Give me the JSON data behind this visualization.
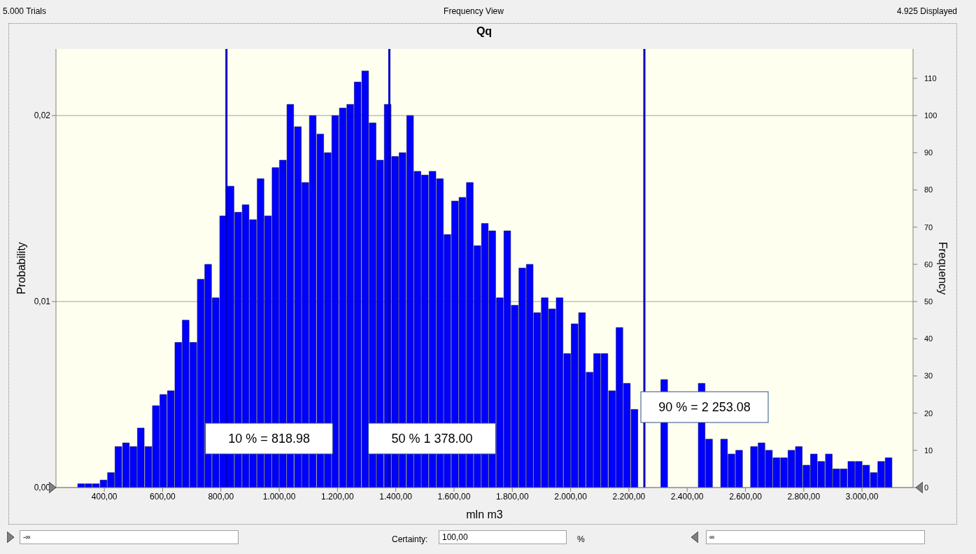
{
  "chart_data": {
    "type": "histogram",
    "title": "Qq",
    "xlabel": "mln m3",
    "ylabel": "Probability",
    "y2label": "Frequency",
    "annotations": [
      "5.000 Trials",
      "Frequency View",
      "4.925 Displayed",
      "-∞",
      "Certainty:",
      "100,00",
      "%",
      "∞"
    ],
    "bins": [
      306,
      332,
      357,
      383,
      409,
      434,
      460,
      486,
      511,
      537,
      563,
      588,
      614,
      640,
      665,
      691,
      717,
      742,
      768,
      794,
      819,
      845,
      871,
      896,
      922,
      948,
      973,
      999,
      1024,
      1050,
      1076,
      1101,
      1127,
      1153,
      1178,
      1204,
      1230,
      1255,
      1281,
      1307,
      1332,
      1358,
      1384,
      1409,
      1435,
      1461,
      1486,
      1512,
      1538,
      1563,
      1589,
      1615,
      1640,
      1666,
      1692,
      1717,
      1743,
      1769,
      1794,
      1820,
      1846,
      1871,
      1897,
      1923,
      1948,
      1974,
      2000,
      2025,
      2051,
      2077,
      2102,
      2128,
      2154,
      2179,
      2205,
      2231,
      2256,
      2282,
      2307,
      2333,
      2359,
      2384,
      2410,
      2436,
      2461,
      2487,
      2513,
      2538,
      2564,
      2590,
      2615,
      2641,
      2667,
      2692,
      2718,
      2744,
      2769,
      2795,
      2821,
      2846,
      2872,
      2898,
      2923,
      2949,
      2975,
      3000,
      3026,
      3052,
      3077,
      3103
    ],
    "series": [
      {
        "color": "#0000ff",
        "axis": "y2",
        "values": [
          1,
          1,
          1,
          2,
          4,
          11,
          12,
          11,
          16,
          11,
          22,
          25,
          26,
          39,
          45,
          39,
          56,
          60,
          51,
          73,
          81,
          74,
          76,
          72,
          83,
          73,
          86,
          88,
          103,
          97,
          82,
          100,
          95,
          90,
          100,
          102,
          103,
          109,
          112,
          98,
          88,
          103,
          89,
          90,
          100,
          85,
          84,
          85,
          83,
          68,
          77,
          78,
          82,
          65,
          71,
          69,
          51,
          69,
          49,
          59,
          60,
          47,
          51,
          48,
          51,
          36,
          44,
          47,
          31,
          36,
          36,
          26,
          43,
          28,
          21,
          null,
          null,
          null,
          29,
          null,
          null,
          null,
          null,
          28,
          13,
          null,
          13,
          9,
          10,
          null,
          11,
          12,
          10,
          8,
          8,
          10,
          11,
          6,
          9,
          7,
          9,
          5,
          5,
          7,
          7,
          6,
          4,
          7,
          8
        ]
      }
    ],
    "xlim": [
      234,
      3175
    ],
    "xticks": [
      {
        "value": 400,
        "label": "400,00"
      },
      {
        "value": 600,
        "label": "600,00"
      },
      {
        "value": 800,
        "label": "800,00"
      },
      {
        "value": 1000,
        "label": "1.000,00"
      },
      {
        "value": 1200,
        "label": "1.200,00"
      },
      {
        "value": 1400,
        "label": "1.400,00"
      },
      {
        "value": 1600,
        "label": "1.600,00"
      },
      {
        "value": 1800,
        "label": "1.800,00"
      },
      {
        "value": 2000,
        "label": "2.000,00"
      },
      {
        "value": 2200,
        "label": "2.200,00"
      },
      {
        "value": 2400,
        "label": "2.400,00"
      },
      {
        "value": 2600,
        "label": "2.600,00"
      },
      {
        "value": 2800,
        "label": "2.800,00"
      },
      {
        "value": 3000,
        "label": "3.000,00"
      }
    ],
    "ylim": [
      0,
      0.02358
    ],
    "yticks": [
      {
        "value": 0,
        "label": "0,00"
      },
      {
        "value": 0.01,
        "label": "0,01"
      },
      {
        "value": 0.02,
        "label": "0,02"
      }
    ],
    "y2lim": [
      0,
      117.9
    ],
    "y2ticks": [
      0,
      10,
      20,
      30,
      40,
      50,
      60,
      70,
      80,
      90,
      100,
      110
    ],
    "ref_lines": [
      {
        "axis": "x",
        "value": 818.98,
        "label": "10 % = 818.98",
        "color": "#0000c0"
      },
      {
        "axis": "x",
        "value": 1378,
        "label": "50 % 1 378.00",
        "color": "#0000c0"
      },
      {
        "axis": "x",
        "value": 2253.08,
        "label": "90 % = 2 253.08",
        "color": "#0000c0"
      }
    ],
    "grid": "y"
  }
}
